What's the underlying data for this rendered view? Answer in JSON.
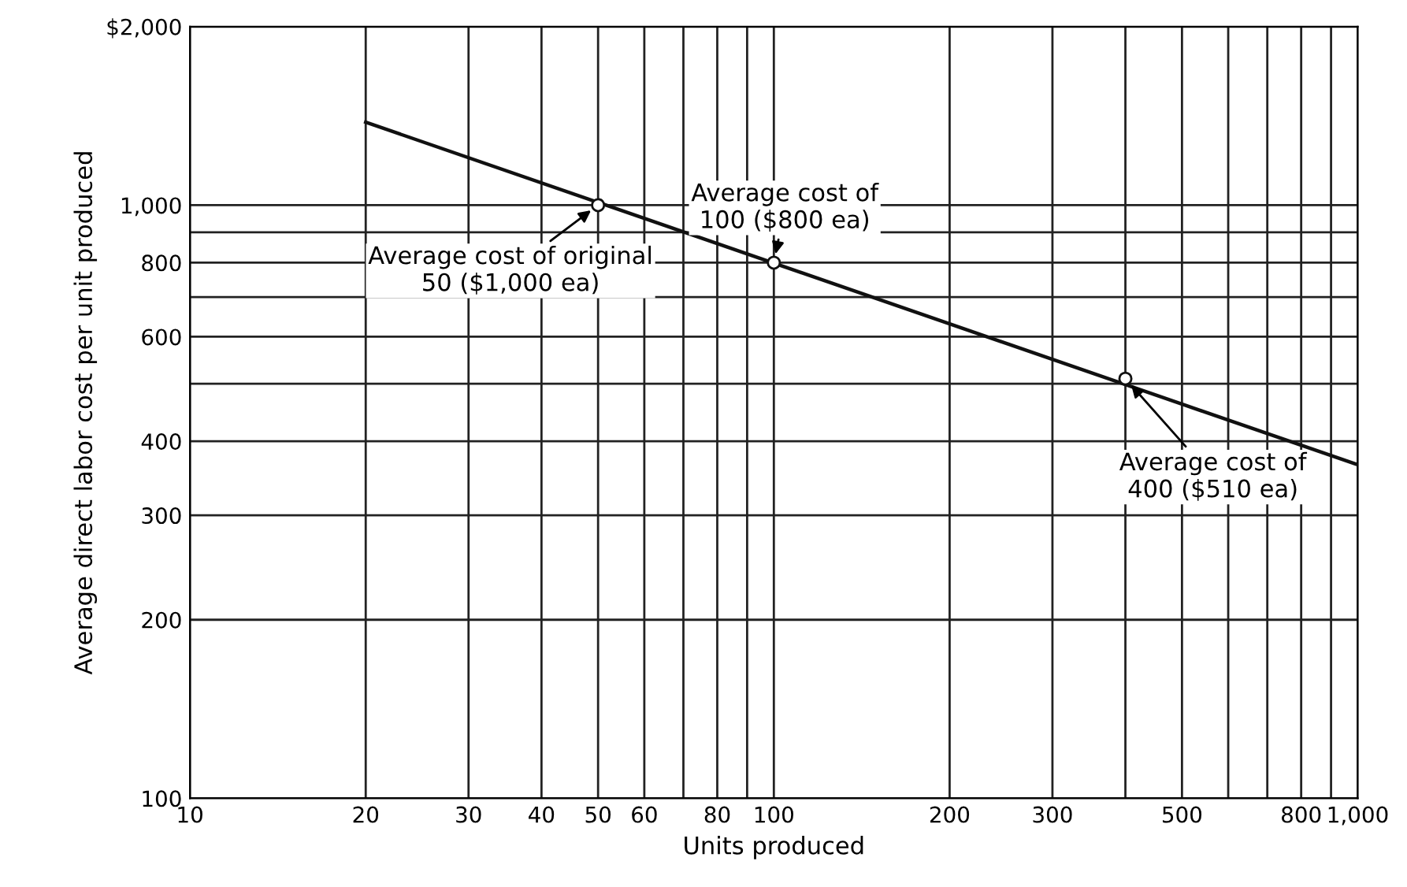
{
  "chart_data": {
    "type": "line",
    "xlabel": "Units produced",
    "ylabel": "Average direct labor cost per unit produced",
    "log": "xy",
    "grid": true,
    "xlim": [
      10,
      1000
    ],
    "ylim": [
      100,
      2000
    ],
    "xticks": [
      10,
      20,
      30,
      40,
      50,
      60,
      {
        "value": 70,
        "label": null
      },
      80,
      {
        "value": 90,
        "label": null
      },
      100,
      200,
      300,
      {
        "value": 400,
        "label": null
      },
      500,
      {
        "value": 600,
        "label": null
      },
      {
        "value": 700,
        "label": null
      },
      800,
      {
        "value": 900,
        "label": null
      },
      {
        "value": 1000,
        "label": "1,000"
      }
    ],
    "yticks": [
      100,
      200,
      300,
      400,
      {
        "value": 500,
        "label": null
      },
      600,
      {
        "value": 700,
        "label": null
      },
      800,
      {
        "value": 900,
        "label": null
      },
      {
        "value": 1000,
        "label": "1,000"
      },
      {
        "value": 2000,
        "label": "$2,000"
      }
    ],
    "series": [
      {
        "color": "#111111",
        "x": [
          20,
          1000
        ],
        "values": [
          1380,
          365
        ],
        "marker": "none"
      },
      {
        "type": "scatter",
        "color": "#111111",
        "x": [
          50,
          100,
          400
        ],
        "values": [
          1000,
          800,
          510
        ],
        "marker": "circle"
      }
    ],
    "annotations": [
      {
        "text": "Average cost of original\n50 ($1,000 ea)",
        "x": 50,
        "y": 1000
      },
      {
        "text": "Average cost of\n100 ($800 ea)",
        "x": 100,
        "y": 800
      },
      {
        "text": "Average cost of\n400 ($510 ea)",
        "x": 400,
        "y": 510
      }
    ]
  }
}
